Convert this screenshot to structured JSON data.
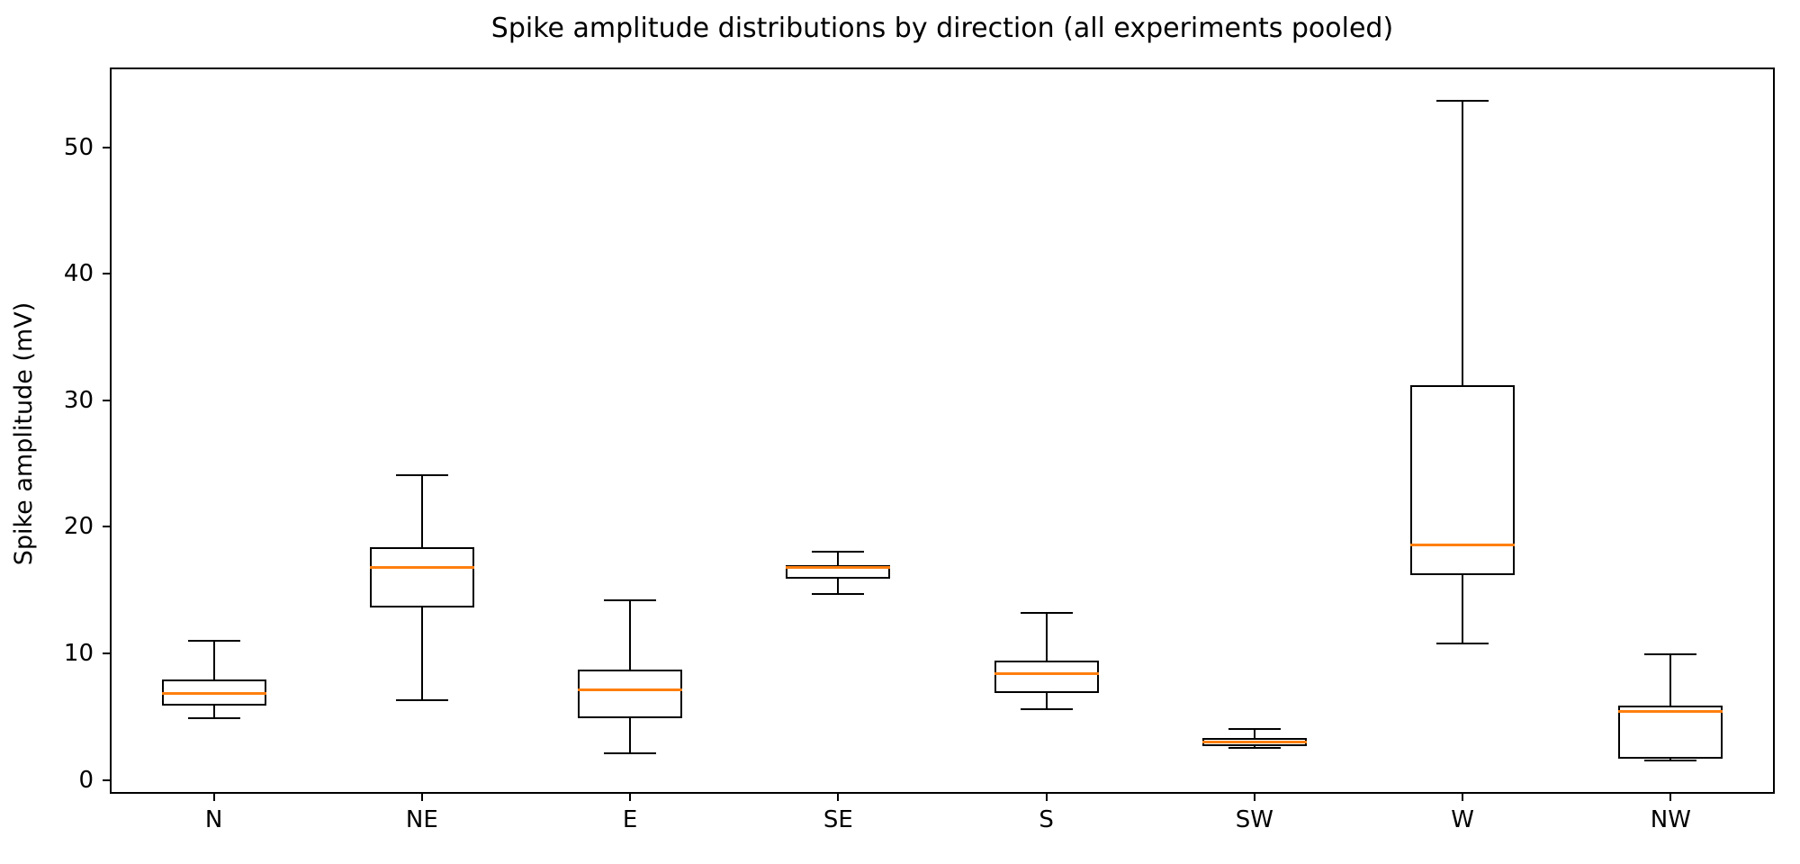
{
  "title": "Spike amplitude distributions by direction (all experiments pooled)",
  "ylabel": "Spike amplitude (mV)",
  "chart_data": {
    "type": "boxplot",
    "title": "Spike amplitude distributions by direction (all experiments pooled)",
    "xlabel": "",
    "ylabel": "Spike amplitude (mV)",
    "categories": [
      "N",
      "NE",
      "E",
      "SE",
      "S",
      "SW",
      "W",
      "NW"
    ],
    "boxes": [
      {
        "category": "N",
        "whisker_low": 4.9,
        "q1": 5.9,
        "median": 6.8,
        "q3": 7.9,
        "whisker_high": 11.0
      },
      {
        "category": "NE",
        "whisker_low": 6.3,
        "q1": 13.6,
        "median": 16.8,
        "q3": 18.4,
        "whisker_high": 24.1
      },
      {
        "category": "E",
        "whisker_low": 2.1,
        "q1": 4.9,
        "median": 7.1,
        "q3": 8.7,
        "whisker_high": 14.2
      },
      {
        "category": "SE",
        "whisker_low": 14.7,
        "q1": 15.9,
        "median": 16.8,
        "q3": 17.0,
        "whisker_high": 18.0
      },
      {
        "category": "S",
        "whisker_low": 5.6,
        "q1": 6.9,
        "median": 8.4,
        "q3": 9.4,
        "whisker_high": 13.2
      },
      {
        "category": "SW",
        "whisker_low": 2.5,
        "q1": 2.7,
        "median": 3.0,
        "q3": 3.3,
        "whisker_high": 4.0
      },
      {
        "category": "W",
        "whisker_low": 10.8,
        "q1": 16.2,
        "median": 18.6,
        "q3": 31.2,
        "whisker_high": 53.7
      },
      {
        "category": "NW",
        "whisker_low": 1.5,
        "q1": 1.7,
        "median": 5.4,
        "q3": 5.9,
        "whisker_high": 9.9
      }
    ],
    "outliers": [],
    "ytick_values": [
      0,
      10,
      20,
      30,
      40,
      50
    ],
    "ytick_labels": [
      "0",
      "10",
      "20",
      "30",
      "40",
      "50"
    ],
    "ylim": [
      -1.1,
      56.3
    ],
    "grid": false,
    "legend": false,
    "median_color": "#ff7f0e",
    "line_color": "#000000",
    "background_color": "#ffffff"
  }
}
